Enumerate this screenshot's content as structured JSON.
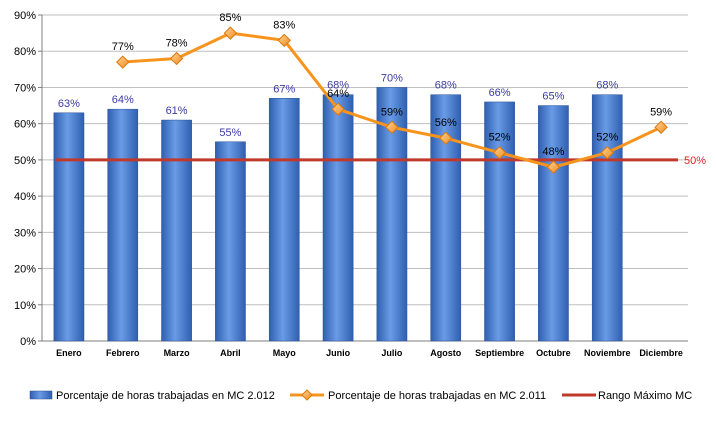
{
  "chart_data": {
    "type": "bar",
    "categories": [
      "Enero",
      "Febrero",
      "Marzo",
      "Abril",
      "Mayo",
      "Junio",
      "Julio",
      "Agosto",
      "Septiembre",
      "Octubre",
      "Noviembre",
      "Diciembre"
    ],
    "y_ticks": [
      "0%",
      "10%",
      "20%",
      "30%",
      "40%",
      "50%",
      "60%",
      "70%",
      "80%",
      "90%"
    ],
    "ylim": [
      0,
      90
    ],
    "legend_position": "bottom",
    "series": [
      {
        "name": "Porcentaje de horas trabajadas en MC 2.012",
        "type": "bar",
        "color": "#4a7fd0",
        "values": [
          63,
          64,
          61,
          55,
          67,
          68,
          70,
          68,
          66,
          65,
          68,
          null
        ],
        "labels": [
          "63%",
          "64%",
          "61%",
          "55%",
          "67%",
          "68%",
          "70%",
          "68%",
          "66%",
          "65%",
          "68%",
          ""
        ]
      },
      {
        "name": "Porcentaje de horas trabajadas en MC 2.011",
        "type": "line",
        "color": "#f7941d",
        "values": [
          null,
          77,
          78,
          85,
          83,
          64,
          59,
          56,
          52,
          48,
          52,
          59
        ],
        "labels": [
          "",
          "77%",
          "78%",
          "85%",
          "83%",
          "64%",
          "59%",
          "56%",
          "52%",
          "48%",
          "52%",
          "59%"
        ]
      },
      {
        "name": "Rango Máximo MC",
        "type": "line",
        "color": "#c0392b",
        "values": [
          50,
          50,
          50,
          50,
          50,
          50,
          50,
          50,
          50,
          50,
          50,
          50
        ],
        "label": "50%"
      }
    ]
  }
}
